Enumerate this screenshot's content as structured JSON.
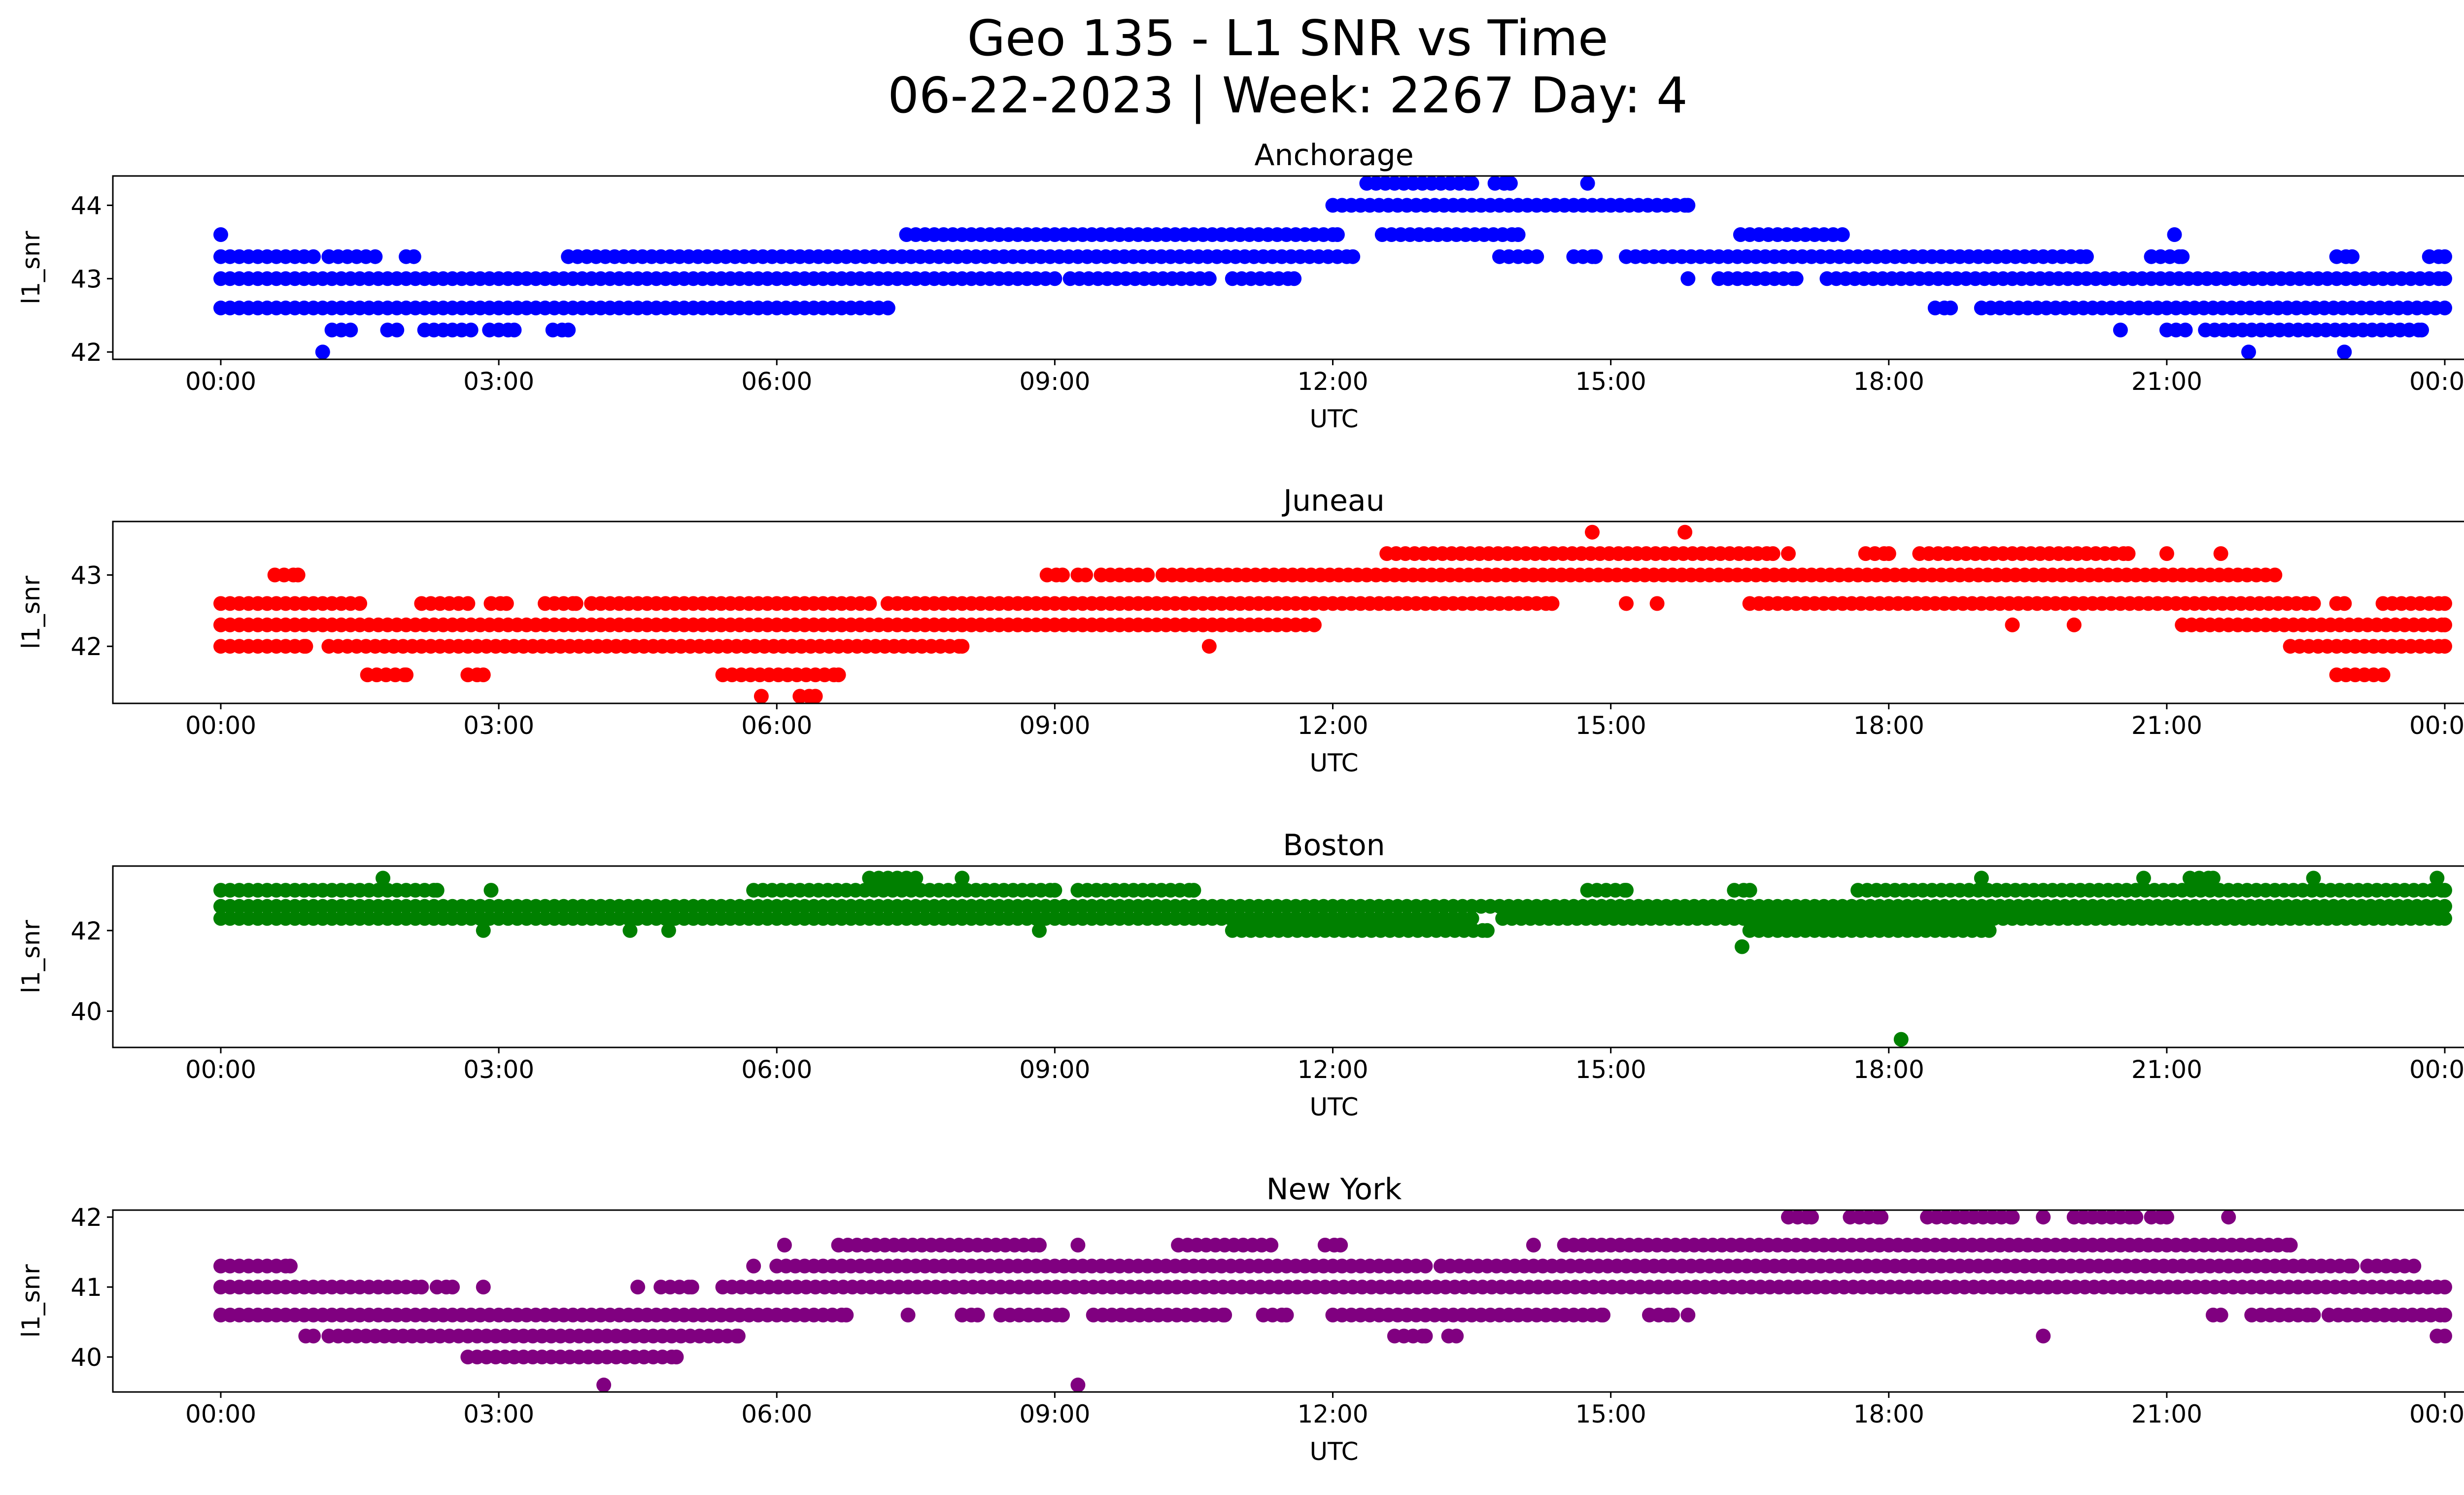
{
  "suptitle": {
    "line1": "Geo 135 - L1 SNR vs Time",
    "line2": "06-22-2023 | Week: 2267 Day: 4"
  },
  "chart_data": [
    {
      "type": "scatter",
      "title": "Anchorage",
      "xlabel": "UTC",
      "ylabel": "l1_snr",
      "color": "#0000ff",
      "xlim": [
        "00:00",
        "24:00"
      ],
      "ylim": [
        41.9,
        44.4
      ],
      "yticks": [
        42,
        43,
        44
      ],
      "xticks": [
        "00:00",
        "03:00",
        "06:00",
        "09:00",
        "12:00",
        "15:00",
        "18:00",
        "21:00",
        "00:00"
      ],
      "grid": false,
      "series": [
        {
          "level": 43.6,
          "segments": [
            [
              "00:00",
              "00:00"
            ],
            [
              "07:24",
              "12:03"
            ],
            [
              "12:32",
              "14:00"
            ],
            [
              "16:24",
              "17:30"
            ],
            [
              "21:05",
              "21:05"
            ]
          ]
        },
        {
          "level": 43.3,
          "segments": [
            [
              "00:00",
              "01:00"
            ],
            [
              "01:10",
              "01:40"
            ],
            [
              "02:00",
              "02:05"
            ],
            [
              "03:45",
              "12:13"
            ],
            [
              "13:48",
              "14:12"
            ],
            [
              "14:36",
              "14:50"
            ],
            [
              "15:10",
              "20:08"
            ],
            [
              "20:50",
              "21:10"
            ],
            [
              "22:50",
              "23:00"
            ],
            [
              "23:50",
              "24:00"
            ]
          ]
        },
        {
          "level": 43.0,
          "segments": [
            [
              "00:00",
              "09:00"
            ],
            [
              "09:10",
              "10:40"
            ],
            [
              "10:55",
              "11:35"
            ],
            [
              "15:50",
              "15:50"
            ],
            [
              "16:10",
              "17:00"
            ],
            [
              "17:20",
              "24:00"
            ]
          ]
        },
        {
          "level": 42.6,
          "segments": [
            [
              "00:00",
              "07:12"
            ],
            [
              "18:30",
              "18:40"
            ],
            [
              "19:00",
              "24:00"
            ]
          ]
        },
        {
          "level": 42.3,
          "segments": [
            [
              "01:12",
              "01:24"
            ],
            [
              "01:48",
              "01:54"
            ],
            [
              "02:12",
              "02:42"
            ],
            [
              "02:54",
              "03:10"
            ],
            [
              "03:35",
              "03:45"
            ],
            [
              "20:30",
              "20:30"
            ],
            [
              "21:00",
              "21:12"
            ],
            [
              "21:25",
              "23:45"
            ]
          ]
        },
        {
          "level": 42.0,
          "segments": [
            [
              "01:06",
              "01:06"
            ],
            [
              "21:53",
              "21:53"
            ],
            [
              "22:55",
              "22:55"
            ]
          ]
        },
        {
          "level": 44.0,
          "segments": [
            [
              "12:00",
              "15:50"
            ]
          ]
        },
        {
          "level": 44.3,
          "segments": [
            [
              "12:22",
              "13:30"
            ],
            [
              "13:45",
              "13:55"
            ],
            [
              "14:45",
              "14:45"
            ]
          ]
        }
      ]
    },
    {
      "type": "scatter",
      "title": "Juneau",
      "xlabel": "UTC",
      "ylabel": "l1_snr",
      "color": "#ff0000",
      "xlim": [
        "00:00",
        "24:00"
      ],
      "ylim": [
        41.2,
        43.75
      ],
      "yticks": [
        42,
        43
      ],
      "xticks": [
        "00:00",
        "03:00",
        "06:00",
        "09:00",
        "12:00",
        "15:00",
        "18:00",
        "21:00",
        "00:00"
      ],
      "grid": false,
      "series": [
        {
          "level": 43.6,
          "segments": [
            [
              "14:48",
              "14:48"
            ],
            [
              "15:48",
              "15:48"
            ]
          ]
        },
        {
          "level": 43.3,
          "segments": [
            [
              "12:35",
              "16:45"
            ],
            [
              "16:55",
              "16:55"
            ],
            [
              "17:45",
              "18:00"
            ],
            [
              "18:20",
              "20:35"
            ],
            [
              "21:00",
              "21:00"
            ],
            [
              "21:35",
              "21:35"
            ]
          ]
        },
        {
          "level": 43.0,
          "segments": [
            [
              "00:35",
              "00:50"
            ],
            [
              "08:55",
              "09:05"
            ],
            [
              "09:15",
              "09:20"
            ],
            [
              "09:30",
              "10:00"
            ],
            [
              "10:10",
              "22:10"
            ]
          ]
        },
        {
          "level": 42.6,
          "segments": [
            [
              "00:00",
              "01:30"
            ],
            [
              "02:10",
              "02:40"
            ],
            [
              "02:55",
              "03:05"
            ],
            [
              "03:30",
              "03:50"
            ],
            [
              "04:00",
              "07:00"
            ],
            [
              "07:12",
              "14:22"
            ],
            [
              "15:10",
              "15:10"
            ],
            [
              "15:30",
              "15:30"
            ],
            [
              "16:30",
              "22:35"
            ],
            [
              "22:50",
              "22:55"
            ],
            [
              "23:20",
              "24:00"
            ]
          ]
        },
        {
          "level": 42.3,
          "segments": [
            [
              "00:00",
              "11:48"
            ],
            [
              "19:20",
              "19:20"
            ],
            [
              "20:00",
              "20:00"
            ],
            [
              "21:10",
              "24:00"
            ]
          ]
        },
        {
          "level": 42.0,
          "segments": [
            [
              "00:00",
              "00:55"
            ],
            [
              "01:10",
              "08:00"
            ],
            [
              "10:40",
              "10:40"
            ],
            [
              "22:20",
              "24:00"
            ]
          ]
        },
        {
          "level": 41.6,
          "segments": [
            [
              "01:35",
              "02:00"
            ],
            [
              "02:40",
              "02:50"
            ],
            [
              "05:25",
              "06:40"
            ],
            [
              "22:50",
              "23:20"
            ]
          ]
        },
        {
          "level": 41.3,
          "segments": [
            [
              "05:50",
              "05:50"
            ],
            [
              "06:15",
              "06:25"
            ]
          ]
        }
      ]
    },
    {
      "type": "scatter",
      "title": "Boston",
      "xlabel": "UTC",
      "ylabel": "l1_snr",
      "color": "#008000",
      "xlim": [
        "00:00",
        "24:00"
      ],
      "ylim": [
        39.1,
        43.6
      ],
      "yticks": [
        40,
        42
      ],
      "xticks": [
        "00:00",
        "03:00",
        "06:00",
        "09:00",
        "12:00",
        "15:00",
        "18:00",
        "21:00",
        "00:00"
      ],
      "grid": false,
      "series": [
        {
          "level": 43.3,
          "segments": [
            [
              "01:45",
              "01:45"
            ],
            [
              "07:00",
              "07:30"
            ],
            [
              "08:00",
              "08:00"
            ],
            [
              "19:00",
              "19:00"
            ],
            [
              "20:45",
              "20:45"
            ],
            [
              "21:15",
              "21:30"
            ],
            [
              "22:35",
              "22:35"
            ],
            [
              "23:55",
              "23:55"
            ]
          ]
        },
        {
          "level": 43.0,
          "segments": [
            [
              "00:00",
              "02:20"
            ],
            [
              "02:55",
              "02:55"
            ],
            [
              "05:45",
              "09:00"
            ],
            [
              "09:15",
              "10:30"
            ],
            [
              "14:45",
              "15:10"
            ],
            [
              "16:20",
              "16:30"
            ],
            [
              "17:40",
              "24:00"
            ]
          ]
        },
        {
          "level": 42.6,
          "segments": [
            [
              "00:00",
              "24:00"
            ]
          ]
        },
        {
          "level": 42.3,
          "segments": [
            [
              "00:00",
              "13:30"
            ],
            [
              "13:50",
              "24:00"
            ]
          ]
        },
        {
          "level": 42.0,
          "segments": [
            [
              "02:50",
              "02:50"
            ],
            [
              "04:25",
              "04:25"
            ],
            [
              "04:50",
              "04:50"
            ],
            [
              "08:50",
              "08:50"
            ],
            [
              "10:55",
              "13:40"
            ],
            [
              "16:30",
              "19:05"
            ]
          ]
        },
        {
          "level": 41.6,
          "segments": [
            [
              "16:25",
              "16:25"
            ]
          ]
        },
        {
          "level": 39.3,
          "segments": [
            [
              "18:08",
              "18:08"
            ]
          ]
        }
      ]
    },
    {
      "type": "scatter",
      "title": "New York",
      "xlabel": "UTC",
      "ylabel": "l1_snr",
      "color": "#800080",
      "xlim": [
        "00:00",
        "24:00"
      ],
      "ylim": [
        39.5,
        42.1
      ],
      "yticks": [
        40,
        41,
        42
      ],
      "xticks": [
        "00:00",
        "03:00",
        "06:00",
        "09:00",
        "12:00",
        "15:00",
        "18:00",
        "21:00",
        "00:00"
      ],
      "grid": false,
      "series": [
        {
          "level": 42.0,
          "segments": [
            [
              "16:55",
              "17:10"
            ],
            [
              "17:35",
              "17:55"
            ],
            [
              "18:25",
              "19:20"
            ],
            [
              "19:40",
              "19:40"
            ],
            [
              "20:00",
              "20:40"
            ],
            [
              "20:50",
              "21:00"
            ],
            [
              "21:40",
              "21:40"
            ]
          ]
        },
        {
          "level": 41.6,
          "segments": [
            [
              "06:05",
              "06:05"
            ],
            [
              "06:40",
              "08:50"
            ],
            [
              "09:15",
              "09:15"
            ],
            [
              "10:20",
              "11:20"
            ],
            [
              "11:55",
              "12:05"
            ],
            [
              "14:10",
              "14:10"
            ],
            [
              "14:30",
              "22:20"
            ]
          ]
        },
        {
          "level": 41.3,
          "segments": [
            [
              "00:00",
              "00:45"
            ],
            [
              "05:45",
              "05:45"
            ],
            [
              "06:00",
              "13:00"
            ],
            [
              "13:10",
              "23:00"
            ],
            [
              "23:10",
              "23:40"
            ]
          ]
        },
        {
          "level": 41.0,
          "segments": [
            [
              "00:00",
              "02:10"
            ],
            [
              "02:20",
              "02:30"
            ],
            [
              "02:50",
              "02:50"
            ],
            [
              "04:30",
              "04:30"
            ],
            [
              "04:45",
              "05:05"
            ],
            [
              "05:25",
              "24:00"
            ]
          ]
        },
        {
          "level": 40.6,
          "segments": [
            [
              "00:00",
              "06:45"
            ],
            [
              "07:25",
              "07:25"
            ],
            [
              "08:00",
              "08:10"
            ],
            [
              "08:25",
              "09:05"
            ],
            [
              "09:25",
              "10:50"
            ],
            [
              "11:15",
              "11:30"
            ],
            [
              "12:00",
              "14:55"
            ],
            [
              "15:25",
              "15:40"
            ],
            [
              "15:50",
              "15:50"
            ],
            [
              "21:30",
              "21:35"
            ],
            [
              "21:55",
              "22:35"
            ],
            [
              "22:45",
              "24:00"
            ]
          ]
        },
        {
          "level": 40.3,
          "segments": [
            [
              "00:55",
              "01:00"
            ],
            [
              "01:10",
              "05:35"
            ],
            [
              "12:40",
              "13:00"
            ],
            [
              "13:15",
              "13:20"
            ],
            [
              "19:40",
              "19:40"
            ],
            [
              "23:55",
              "24:00"
            ]
          ]
        },
        {
          "level": 40.0,
          "segments": [
            [
              "02:40",
              "04:55"
            ]
          ]
        },
        {
          "level": 39.6,
          "segments": [
            [
              "04:08",
              "04:08"
            ],
            [
              "09:15",
              "09:15"
            ]
          ]
        }
      ]
    }
  ]
}
